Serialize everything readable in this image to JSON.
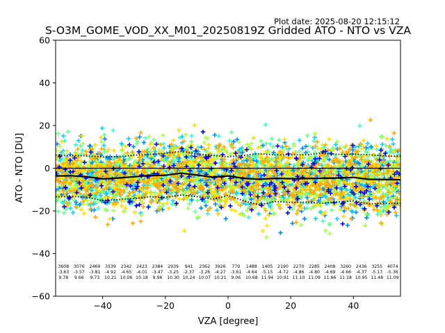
{
  "chart_data": {
    "type": "scatter",
    "title": "S-O3M_GOME_VOD_XX_M01_20250819Z Gridded ATO - NTO vs VZA",
    "plot_date": "Plot date: 2025-08-20 12:15:12",
    "xlabel": "VZA [degree]",
    "ylabel": "ATO - NTO [DU]",
    "xlim": [
      -55,
      55
    ],
    "ylim": [
      -60,
      60
    ],
    "xticks": [
      -40,
      -20,
      0,
      20,
      40
    ],
    "yticks": [
      -60,
      -40,
      -20,
      0,
      20,
      40,
      60
    ],
    "zero_line": 0,
    "marker": "+",
    "point_colors": [
      "#0000ee",
      "#0088ff",
      "#11ccff",
      "#33ffcc",
      "#66ff88",
      "#aaff44",
      "#ffdd00",
      "#ffaa00"
    ],
    "bins": [
      {
        "vza": -52.5,
        "count": "3608",
        "mean": "-3.63",
        "std": "9.78"
      },
      {
        "vza": -47.5,
        "count": "3076",
        "mean": "-3.57",
        "std": "9.66"
      },
      {
        "vza": -42.5,
        "count": "2469",
        "mean": "-3.81",
        "std": "9.73"
      },
      {
        "vza": -37.5,
        "count": "3539",
        "mean": "-4.92",
        "std": "10.21"
      },
      {
        "vza": -32.5,
        "count": "2342",
        "mean": "-4.65",
        "std": "10.06"
      },
      {
        "vza": -27.5,
        "count": "2423",
        "mean": "-4.01",
        "std": "10.18"
      },
      {
        "vza": -22.5,
        "count": "2384",
        "mean": "-3.47",
        "std": "9.96"
      },
      {
        "vza": -17.5,
        "count": "2939",
        "mean": "-3.25",
        "std": "10.30"
      },
      {
        "vza": -12.5,
        "count": "941",
        "mean": "-2.37",
        "std": "10.24"
      },
      {
        "vza": -7.5,
        "count": "2362",
        "mean": "-3.26",
        "std": "10.07"
      },
      {
        "vza": -2.5,
        "count": "3926",
        "mean": "-4.27",
        "std": "10.21"
      },
      {
        "vza": 2.5,
        "count": "779",
        "mean": "-3.61",
        "std": "9.06"
      },
      {
        "vza": 7.5,
        "count": "1488",
        "mean": "-4.64",
        "std": "10.68"
      },
      {
        "vza": 12.5,
        "count": "1405",
        "mean": "-5.15",
        "std": "11.94"
      },
      {
        "vza": 17.5,
        "count": "2190",
        "mean": "-4.72",
        "std": "10.91"
      },
      {
        "vza": 22.5,
        "count": "2270",
        "mean": "-4.86",
        "std": "11.10"
      },
      {
        "vza": 27.5,
        "count": "2285",
        "mean": "-4.80",
        "std": "11.09"
      },
      {
        "vza": 32.5,
        "count": "2408",
        "mean": "-4.69",
        "std": "11.66"
      },
      {
        "vza": 37.5,
        "count": "3260",
        "mean": "-4.66",
        "std": "11.18"
      },
      {
        "vza": 42.5,
        "count": "2436",
        "mean": "-4.37",
        "std": "10.95"
      },
      {
        "vza": 47.5,
        "count": "3255",
        "mean": "-5.17",
        "std": "11.48"
      },
      {
        "vza": 52.5,
        "count": "4074",
        "mean": "-5.36",
        "std": "11.09"
      }
    ],
    "mean_line": [
      [
        -55,
        -3.6
      ],
      [
        -50,
        -3.5
      ],
      [
        -45,
        -4.0
      ],
      [
        -40,
        -5.0
      ],
      [
        -35,
        -4.6
      ],
      [
        -30,
        -4.0
      ],
      [
        -25,
        -3.4
      ],
      [
        -20,
        -3.3
      ],
      [
        -15,
        -2.3
      ],
      [
        -10,
        -3.2
      ],
      [
        -5,
        -4.2
      ],
      [
        0,
        -3.6
      ],
      [
        5,
        -4.7
      ],
      [
        10,
        -5.2
      ],
      [
        15,
        -4.7
      ],
      [
        20,
        -4.9
      ],
      [
        25,
        -4.8
      ],
      [
        30,
        -4.7
      ],
      [
        35,
        -4.6
      ],
      [
        40,
        -4.3
      ],
      [
        45,
        -5.2
      ],
      [
        50,
        -5.3
      ],
      [
        55,
        -5.4
      ]
    ],
    "upper_sigma_line": [
      [
        -55,
        6.2
      ],
      [
        -50,
        6.0
      ],
      [
        -45,
        5.8
      ],
      [
        -40,
        5.3
      ],
      [
        -35,
        5.4
      ],
      [
        -30,
        6.1
      ],
      [
        -25,
        6.5
      ],
      [
        -20,
        7.0
      ],
      [
        -15,
        7.9
      ],
      [
        -10,
        6.8
      ],
      [
        -5,
        6.0
      ],
      [
        0,
        5.4
      ],
      [
        5,
        6.0
      ],
      [
        10,
        6.8
      ],
      [
        15,
        6.2
      ],
      [
        20,
        6.3
      ],
      [
        25,
        6.3
      ],
      [
        30,
        7.0
      ],
      [
        35,
        6.5
      ],
      [
        40,
        6.6
      ],
      [
        45,
        6.3
      ],
      [
        50,
        5.7
      ],
      [
        55,
        5.7
      ]
    ],
    "lower_sigma_line": [
      [
        -55,
        -13.4
      ],
      [
        -50,
        -13.2
      ],
      [
        -45,
        -13.6
      ],
      [
        -40,
        -15.1
      ],
      [
        -35,
        -14.7
      ],
      [
        -30,
        -14.2
      ],
      [
        -25,
        -13.4
      ],
      [
        -20,
        -13.6
      ],
      [
        -15,
        -12.6
      ],
      [
        -10,
        -13.3
      ],
      [
        -5,
        -14.5
      ],
      [
        0,
        -12.7
      ],
      [
        5,
        -15.3
      ],
      [
        10,
        -17.1
      ],
      [
        15,
        -15.6
      ],
      [
        20,
        -16.0
      ],
      [
        25,
        -15.9
      ],
      [
        30,
        -16.4
      ],
      [
        35,
        -15.8
      ],
      [
        40,
        -15.3
      ],
      [
        45,
        -16.7
      ],
      [
        50,
        -16.5
      ],
      [
        55,
        -16.5
      ]
    ]
  }
}
